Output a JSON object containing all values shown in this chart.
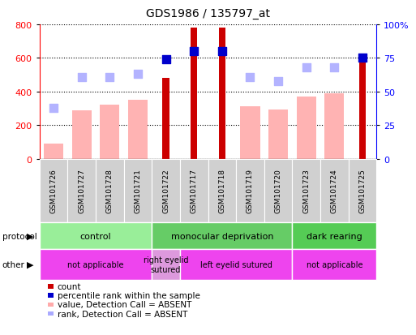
{
  "title": "GDS1986 / 135797_at",
  "samples": [
    "GSM101726",
    "GSM101727",
    "GSM101728",
    "GSM101721",
    "GSM101722",
    "GSM101717",
    "GSM101718",
    "GSM101719",
    "GSM101720",
    "GSM101723",
    "GSM101724",
    "GSM101725"
  ],
  "count_values": [
    null,
    null,
    null,
    null,
    480,
    780,
    780,
    null,
    null,
    null,
    null,
    580
  ],
  "absent_value_bars": [
    90,
    290,
    320,
    350,
    null,
    null,
    null,
    310,
    295,
    370,
    390,
    null
  ],
  "percentile_rank_dots": [
    null,
    null,
    null,
    null,
    74,
    80,
    80,
    null,
    null,
    null,
    null,
    75
  ],
  "absent_rank_dots": [
    38,
    61,
    61,
    63,
    null,
    null,
    null,
    61,
    58,
    68,
    68,
    null
  ],
  "ylim_left": [
    0,
    800
  ],
  "ylim_right": [
    0,
    100
  ],
  "yticks_left": [
    0,
    200,
    400,
    600,
    800
  ],
  "yticks_right": [
    0,
    25,
    50,
    75,
    100
  ],
  "ytick_labels_right": [
    "0",
    "25",
    "50",
    "75",
    "100%"
  ],
  "protocol_groups": [
    {
      "label": "control",
      "start": 0,
      "end": 3,
      "color": "#99ee99"
    },
    {
      "label": "monocular deprivation",
      "start": 4,
      "end": 8,
      "color": "#66cc66"
    },
    {
      "label": "dark rearing",
      "start": 9,
      "end": 11,
      "color": "#55cc55"
    }
  ],
  "other_groups": [
    {
      "label": "not applicable",
      "start": 0,
      "end": 3,
      "color": "#ee44ee"
    },
    {
      "label": "right eyelid\nsutured",
      "start": 4,
      "end": 4,
      "color": "#dd99dd"
    },
    {
      "label": "left eyelid sutured",
      "start": 5,
      "end": 8,
      "color": "#ee44ee"
    },
    {
      "label": "not applicable",
      "start": 9,
      "end": 11,
      "color": "#ee44ee"
    }
  ],
  "legend_items": [
    {
      "color": "#cc0000",
      "label": "count",
      "marker": "s"
    },
    {
      "color": "#0000cc",
      "label": "percentile rank within the sample",
      "marker": "s"
    },
    {
      "color": "#ffaaaa",
      "label": "value, Detection Call = ABSENT",
      "marker": "s"
    },
    {
      "color": "#aaaaff",
      "label": "rank, Detection Call = ABSENT",
      "marker": "s"
    }
  ],
  "absent_bar_color": "#ffb3b3",
  "absent_dot_color": "#b3b3ff",
  "count_color": "#cc0000",
  "percentile_color": "#0000cc",
  "label_box_color": "#cccccc",
  "chart_bg": "#ffffff"
}
